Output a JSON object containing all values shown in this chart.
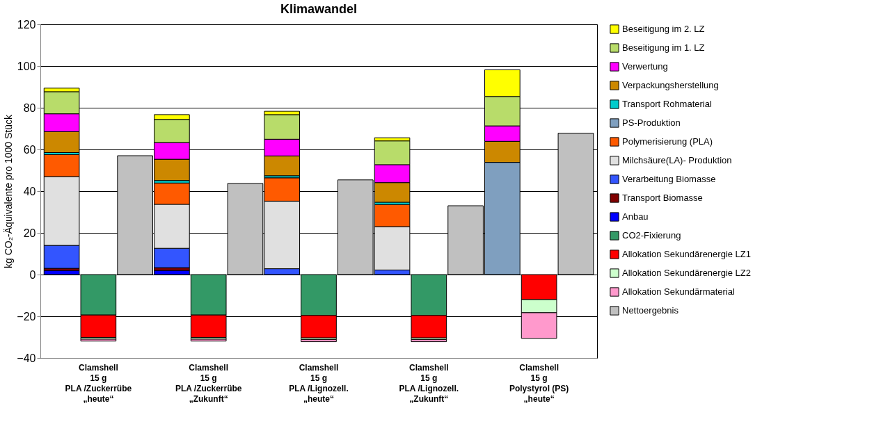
{
  "chart_data": {
    "type": "bar",
    "title": "Klimawandel",
    "ylabel": "kg CO₂-Äquivalente pro 1000 Stück",
    "categories": [
      null,
      "Clamshell\n15 g\nPLA /Zuckerrübe\n„heute“",
      null,
      null,
      "Clamshell\n15 g\nPLA /Zuckerrübe\n„Zukunft“",
      null,
      null,
      "Clamshell\n15 g\nPLA /Lignozell.\n„heute“",
      null,
      null,
      "Clamshell\n15 g\nPLA /Lignozell.\n„Zukunft“",
      null,
      null,
      "Clamshell\n15 g\nPolystyrol (PS)\n„heute“",
      null
    ],
    "stacked": true,
    "ylim": [
      -40,
      120
    ],
    "yticks": [
      -40,
      -20,
      0,
      20,
      40,
      60,
      80,
      100,
      120
    ],
    "grid": "y",
    "legend": "right",
    "series": [
      {
        "name": "Anbau",
        "color": "#0000ff",
        "values": [
          2,
          null,
          null,
          2,
          null,
          null,
          null,
          null,
          null,
          null,
          null,
          null,
          null,
          null,
          null
        ]
      },
      {
        "name": "Transport Biomasse",
        "color": "#800000",
        "values": [
          1,
          null,
          null,
          1.3,
          null,
          null,
          null,
          null,
          null,
          null,
          null,
          null,
          null,
          null,
          null
        ]
      },
      {
        "name": "Verarbeitung Biomasse",
        "color": "#3355ff",
        "values": [
          11,
          null,
          null,
          9.3,
          null,
          null,
          2.8,
          null,
          null,
          2.2,
          null,
          null,
          null,
          null,
          null
        ]
      },
      {
        "name": "Milchsäure(LA)- Produktion",
        "color": "#e0e0e0",
        "values": [
          33,
          null,
          null,
          21.1,
          null,
          null,
          32.4,
          null,
          null,
          20.8,
          null,
          null,
          null,
          null,
          null
        ]
      },
      {
        "name": "Polymerisierung (PLA)",
        "color": "#ff5a00",
        "values": [
          10.5,
          null,
          null,
          10.2,
          null,
          null,
          11.2,
          null,
          null,
          10.6,
          null,
          null,
          null,
          null,
          null
        ]
      },
      {
        "name": "PS-Produktion",
        "color": "#7f9fbf",
        "values": [
          null,
          null,
          null,
          null,
          null,
          null,
          null,
          null,
          null,
          null,
          null,
          null,
          53.8,
          null,
          null
        ]
      },
      {
        "name": "Transport Rohmaterial",
        "color": "#00cccc",
        "values": [
          1,
          null,
          null,
          1.2,
          null,
          null,
          1,
          null,
          null,
          1.1,
          null,
          null,
          null,
          null,
          null
        ]
      },
      {
        "name": "Verpackungsherstellung",
        "color": "#cc8800",
        "values": [
          10,
          null,
          null,
          10.2,
          null,
          null,
          9.5,
          null,
          null,
          9.4,
          null,
          null,
          10.1,
          null,
          null
        ]
      },
      {
        "name": "Verwertung",
        "color": "#ff00ff",
        "values": [
          8.6,
          null,
          null,
          8,
          null,
          null,
          8,
          null,
          null,
          8.6,
          null,
          null,
          7.4,
          null,
          null
        ]
      },
      {
        "name": "Beseitigung im 1. LZ",
        "color": "#b8dc6a",
        "values": [
          10.6,
          null,
          null,
          11.1,
          null,
          null,
          11.8,
          null,
          null,
          11.4,
          null,
          null,
          14.1,
          null,
          null
        ]
      },
      {
        "name": "Beseitigung im 2. LZ",
        "color": "#ffff00",
        "values": [
          1.7,
          null,
          null,
          2.3,
          null,
          null,
          1.6,
          null,
          null,
          1.5,
          null,
          null,
          12.8,
          null,
          null
        ]
      },
      {
        "name": "CO2-Fixierung",
        "color": "#339966",
        "values": [
          null,
          -19.4,
          null,
          null,
          -19.4,
          null,
          null,
          -19.6,
          null,
          null,
          -19.6,
          null,
          null,
          null,
          null
        ]
      },
      {
        "name": "Allokation Sekundärenergie LZ1",
        "color": "#ff0000",
        "values": [
          null,
          -10.8,
          null,
          null,
          -10.8,
          null,
          null,
          -10.8,
          null,
          null,
          -10.8,
          null,
          null,
          -12,
          null
        ]
      },
      {
        "name": "Allokation Sekundärenergie LZ2",
        "color": "#ccffcc",
        "values": [
          null,
          -0.8,
          null,
          null,
          -0.8,
          null,
          null,
          -0.8,
          null,
          null,
          -0.8,
          null,
          null,
          -6.3,
          null
        ]
      },
      {
        "name": "Allokation Sekundärmaterial",
        "color": "#ff99cc",
        "values": [
          null,
          -0.9,
          null,
          null,
          -0.9,
          null,
          null,
          -1,
          null,
          null,
          -1,
          null,
          null,
          -12.3,
          null
        ]
      },
      {
        "name": "Nettoergebnis",
        "color": "#c0c0c0",
        "values": [
          null,
          null,
          57,
          null,
          null,
          43.7,
          null,
          null,
          45.4,
          null,
          null,
          33,
          null,
          null,
          67.8
        ]
      }
    ]
  }
}
